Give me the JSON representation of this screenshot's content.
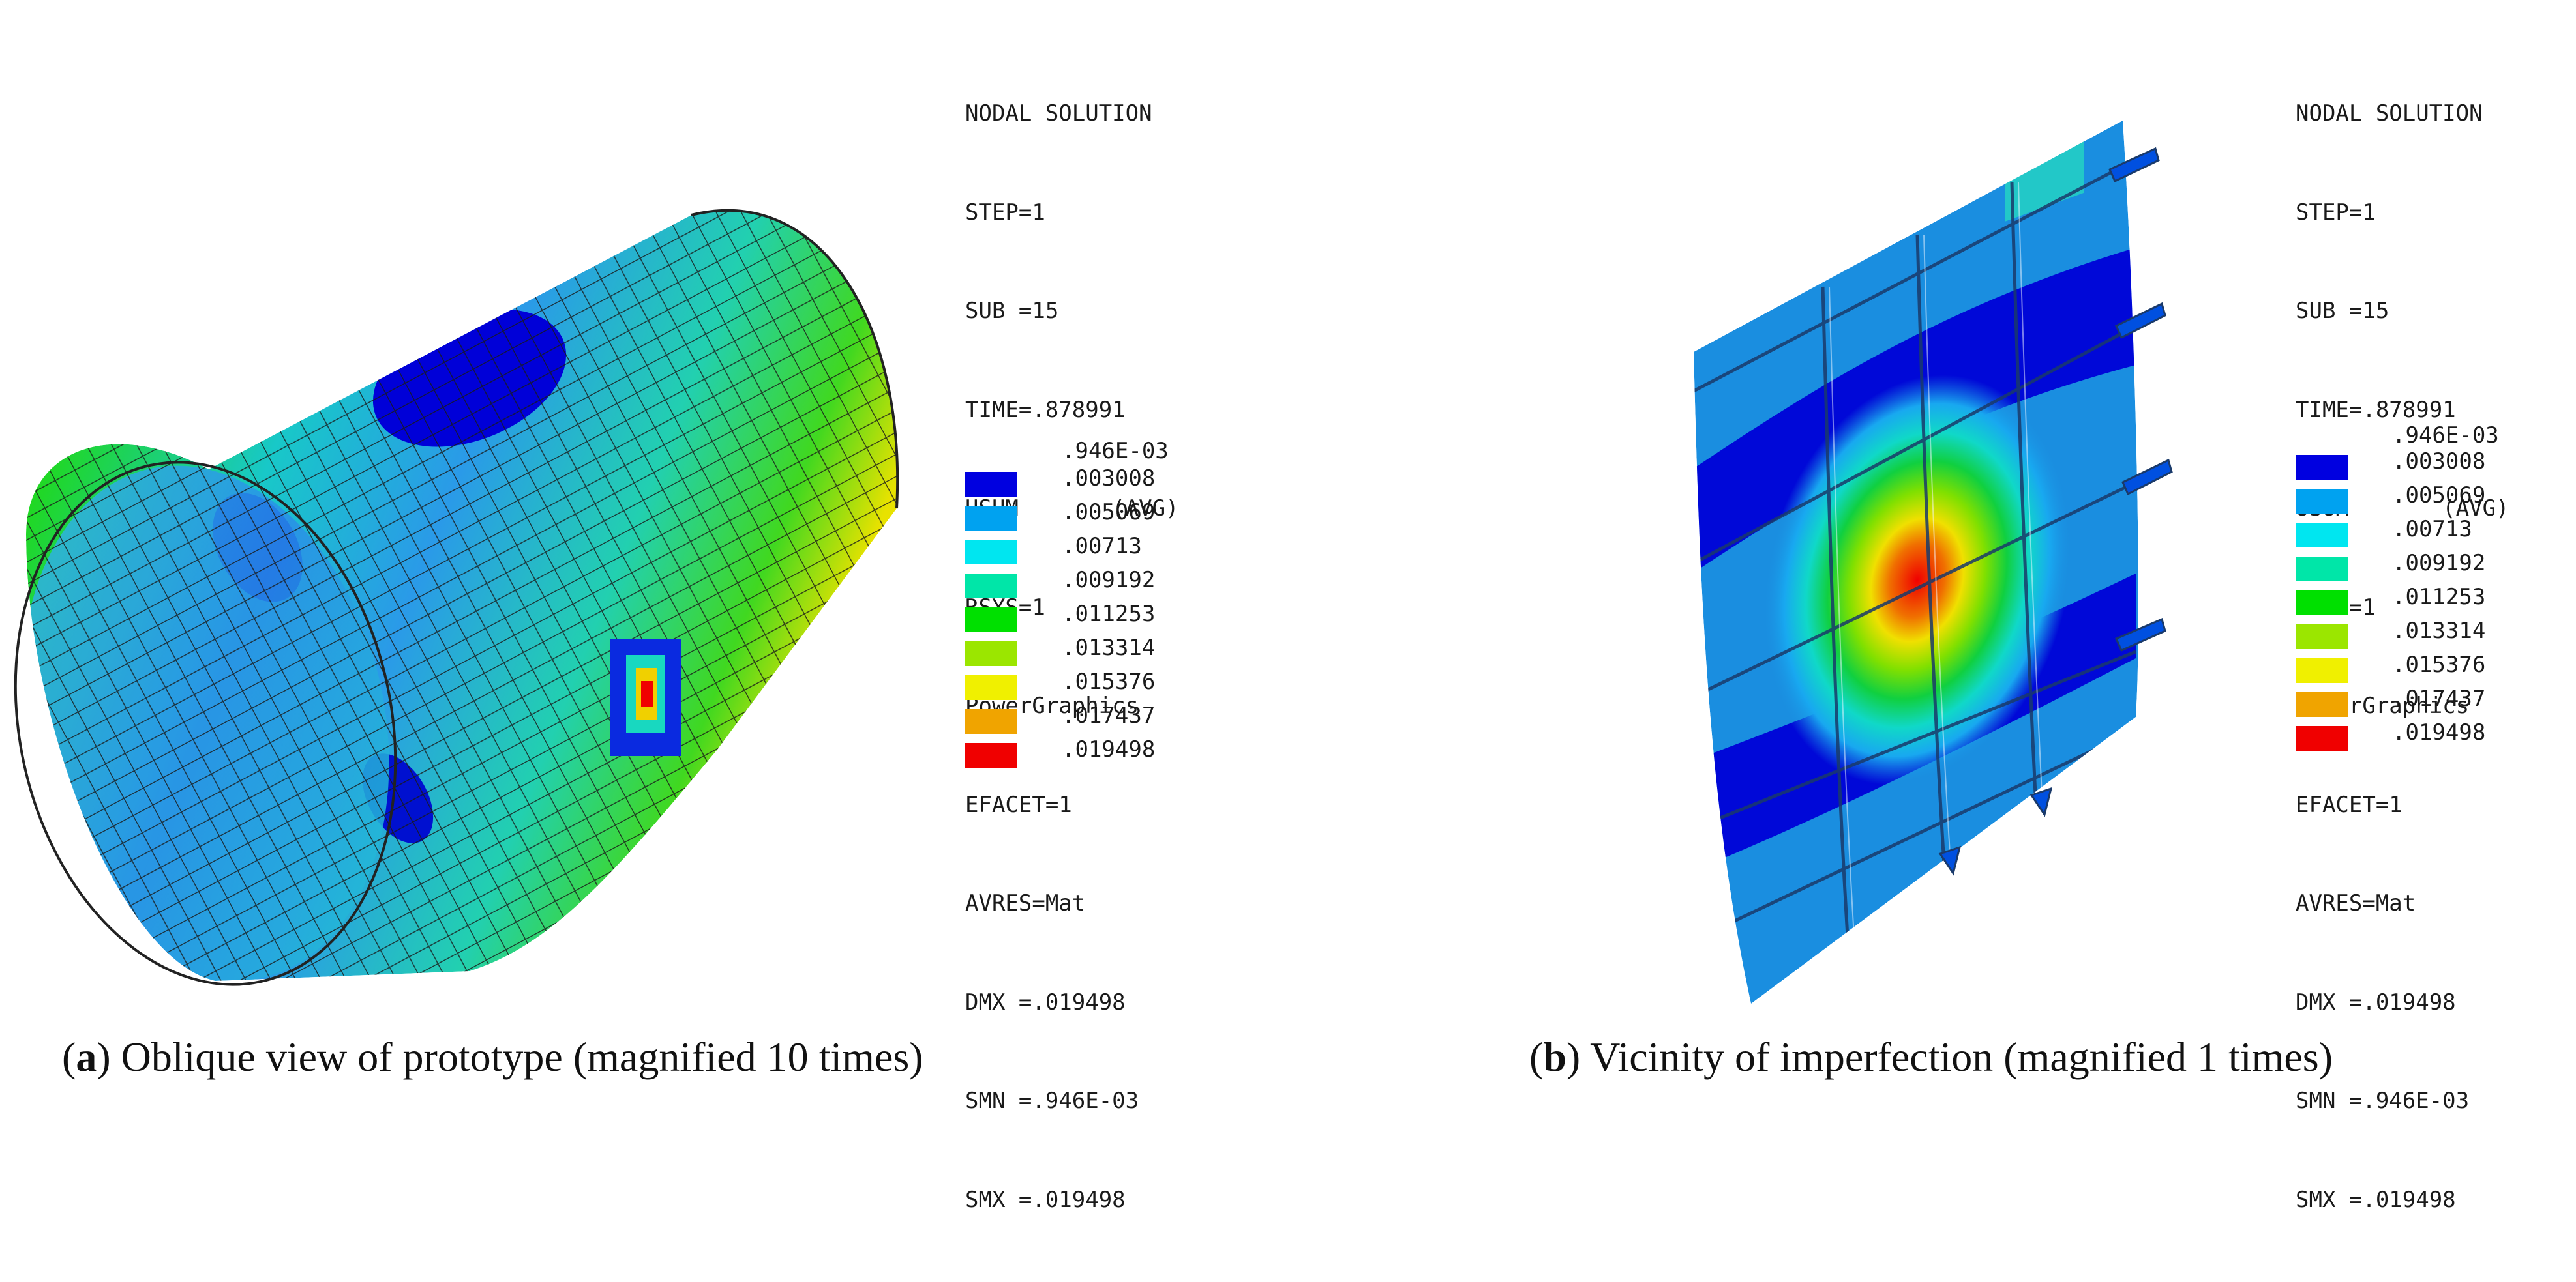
{
  "panels": [
    {
      "id": "a",
      "legend": {
        "lines": [
          "NODAL SOLUTION",
          "STEP=1",
          "SUB =15",
          "TIME=.878991",
          "USUM       (AVG)",
          "RSYS=1",
          "PowerGraphics",
          "EFACET=1",
          "AVRES=Mat",
          "DMX =.019498",
          "SMN =.946E-03",
          "SMX =.019498"
        ]
      },
      "scale_min": ".946E-03",
      "caption": {
        "letter": "a",
        "text": "Oblique view of prototype (magnified 10 times)"
      }
    },
    {
      "id": "b",
      "legend": {
        "lines": [
          "NODAL SOLUTION",
          "STEP=1",
          "SUB =15",
          "TIME=.878991",
          "USUM       (AVG)",
          "RSYS=1",
          "PowerGraphics",
          "EFACET=1",
          "AVRES=Mat",
          "DMX =.019498",
          "SMN =.946E-03",
          "SMX =.019498"
        ]
      },
      "scale_min": ".946E-03",
      "caption": {
        "letter": "b",
        "text": "Vicinity of imperfection (magnified 1 times)"
      }
    }
  ],
  "contour_scale": [
    {
      "value": ".003008",
      "color": "#0000e0"
    },
    {
      "value": ".005069",
      "color": "#00a2f0"
    },
    {
      "value": ".00713",
      "color": "#00e6f0"
    },
    {
      "value": ".009192",
      "color": "#00e6a8"
    },
    {
      "value": ".011253",
      "color": "#00e000"
    },
    {
      "value": ".013314",
      "color": "#9be600"
    },
    {
      "value": ".015376",
      "color": "#f0f000"
    },
    {
      "value": ".017437",
      "color": "#f0a400"
    },
    {
      "value": ".019498",
      "color": "#f00000"
    }
  ]
}
